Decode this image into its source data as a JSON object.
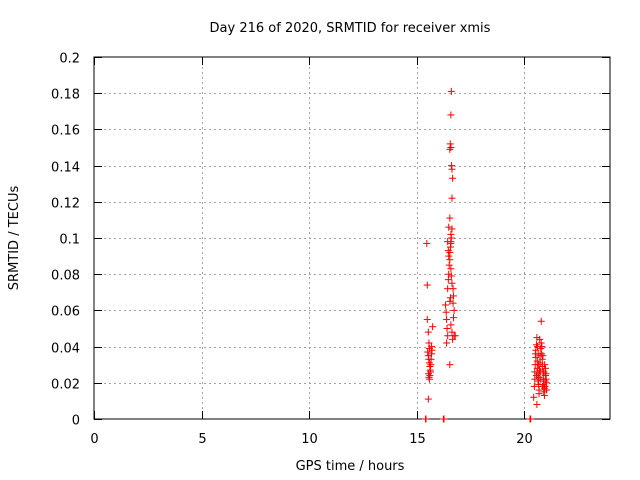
{
  "chart_data": {
    "type": "scatter",
    "title": "Day 216 of 2020, SRMTID for receiver xmis",
    "xlabel": "GPS time / hours",
    "ylabel": "SRMTID / TECUs",
    "xlim": [
      0,
      24
    ],
    "ylim": [
      0,
      0.2
    ],
    "xticks": [
      0,
      5,
      10,
      15,
      20
    ],
    "xtick_labels": [
      "0",
      "5",
      "10",
      "15",
      "20"
    ],
    "yticks": [
      0,
      0.02,
      0.04,
      0.06,
      0.08,
      0.1,
      0.12,
      0.14,
      0.16,
      0.18,
      0.2
    ],
    "ytick_labels": [
      "0",
      "0.02",
      "0.04",
      "0.06",
      "0.08",
      "0.1",
      "0.12",
      "0.14",
      "0.16",
      "0.18",
      "0.2"
    ],
    "grid": true,
    "marker": "+",
    "marker_color": "#ff0000",
    "series": [
      {
        "name": "SRMTID",
        "points": [
          [
            15.42,
            0.0
          ],
          [
            15.44,
            0.0
          ],
          [
            16.25,
            0.0
          ],
          [
            16.28,
            0.0
          ],
          [
            20.28,
            0.0
          ],
          [
            20.31,
            0.0
          ],
          [
            15.48,
            0.097
          ],
          [
            15.5,
            0.074
          ],
          [
            15.5,
            0.055
          ],
          [
            15.55,
            0.048
          ],
          [
            15.58,
            0.042
          ],
          [
            15.6,
            0.039
          ],
          [
            15.52,
            0.037
          ],
          [
            15.55,
            0.035
          ],
          [
            15.57,
            0.033
          ],
          [
            15.6,
            0.031
          ],
          [
            15.62,
            0.029
          ],
          [
            15.64,
            0.027
          ],
          [
            15.56,
            0.025
          ],
          [
            15.58,
            0.023
          ],
          [
            15.6,
            0.022
          ],
          [
            15.62,
            0.024
          ],
          [
            15.65,
            0.026
          ],
          [
            15.66,
            0.03
          ],
          [
            15.68,
            0.033
          ],
          [
            15.7,
            0.036
          ],
          [
            15.72,
            0.038
          ],
          [
            15.7,
            0.04
          ],
          [
            15.75,
            0.051
          ],
          [
            15.55,
            0.011
          ],
          [
            16.35,
            0.063
          ],
          [
            16.38,
            0.059
          ],
          [
            16.4,
            0.055
          ],
          [
            16.42,
            0.05
          ],
          [
            16.45,
            0.046
          ],
          [
            16.4,
            0.042
          ],
          [
            16.45,
            0.072
          ],
          [
            16.48,
            0.077
          ],
          [
            16.5,
            0.08
          ],
          [
            16.52,
            0.085
          ],
          [
            16.55,
            0.088
          ],
          [
            16.5,
            0.09
          ],
          [
            16.55,
            0.092
          ],
          [
            16.58,
            0.095
          ],
          [
            16.6,
            0.098
          ],
          [
            16.62,
            0.1
          ],
          [
            16.6,
            0.102
          ],
          [
            16.65,
            0.105
          ],
          [
            16.5,
            0.106
          ],
          [
            16.55,
            0.111
          ],
          [
            16.45,
            0.098
          ],
          [
            16.48,
            0.093
          ],
          [
            16.6,
            0.083
          ],
          [
            16.62,
            0.079
          ],
          [
            16.65,
            0.075
          ],
          [
            16.7,
            0.072
          ],
          [
            16.72,
            0.068
          ],
          [
            16.7,
            0.064
          ],
          [
            16.75,
            0.06
          ],
          [
            16.72,
            0.056
          ],
          [
            16.6,
            0.052
          ],
          [
            16.65,
            0.048
          ],
          [
            16.68,
            0.044
          ],
          [
            16.75,
            0.046
          ],
          [
            16.8,
            0.046
          ],
          [
            16.55,
            0.03
          ],
          [
            16.55,
            0.149
          ],
          [
            16.57,
            0.152
          ],
          [
            16.6,
            0.15
          ],
          [
            16.62,
            0.181
          ],
          [
            16.6,
            0.168
          ],
          [
            16.63,
            0.14
          ],
          [
            16.65,
            0.138
          ],
          [
            16.68,
            0.133
          ],
          [
            16.65,
            0.122
          ],
          [
            16.6,
            0.097
          ],
          [
            16.58,
            0.067
          ],
          [
            16.55,
            0.065
          ],
          [
            20.45,
            0.012
          ],
          [
            20.48,
            0.018
          ],
          [
            20.5,
            0.022
          ],
          [
            20.5,
            0.026
          ],
          [
            20.52,
            0.03
          ],
          [
            20.55,
            0.034
          ],
          [
            20.55,
            0.038
          ],
          [
            20.58,
            0.041
          ],
          [
            20.6,
            0.045
          ],
          [
            20.62,
            0.032
          ],
          [
            20.62,
            0.028
          ],
          [
            20.65,
            0.025
          ],
          [
            20.65,
            0.021
          ],
          [
            20.68,
            0.019
          ],
          [
            20.7,
            0.016
          ],
          [
            20.7,
            0.023
          ],
          [
            20.72,
            0.027
          ],
          [
            20.75,
            0.031
          ],
          [
            20.75,
            0.035
          ],
          [
            20.78,
            0.039
          ],
          [
            20.8,
            0.042
          ],
          [
            20.8,
            0.054
          ],
          [
            20.82,
            0.036
          ],
          [
            20.85,
            0.033
          ],
          [
            20.85,
            0.029
          ],
          [
            20.88,
            0.026
          ],
          [
            20.9,
            0.022
          ],
          [
            20.9,
            0.019
          ],
          [
            20.92,
            0.015
          ],
          [
            20.95,
            0.013
          ],
          [
            20.95,
            0.017
          ],
          [
            20.98,
            0.021
          ],
          [
            21.0,
            0.024
          ],
          [
            21.0,
            0.028
          ],
          [
            21.02,
            0.025
          ],
          [
            21.05,
            0.02
          ],
          [
            21.05,
            0.016
          ],
          [
            20.6,
            0.008
          ],
          [
            20.7,
            0.014
          ],
          [
            20.58,
            0.024
          ],
          [
            20.68,
            0.03
          ],
          [
            20.78,
            0.022
          ],
          [
            20.88,
            0.035
          ],
          [
            20.98,
            0.018
          ],
          [
            20.53,
            0.036
          ],
          [
            20.63,
            0.04
          ],
          [
            20.73,
            0.044
          ],
          [
            20.83,
            0.04
          ],
          [
            20.93,
            0.026
          ],
          [
            21.03,
            0.022
          ],
          [
            20.66,
            0.036
          ],
          [
            20.76,
            0.026
          ],
          [
            20.86,
            0.018
          ],
          [
            20.96,
            0.03
          ]
        ]
      }
    ]
  }
}
